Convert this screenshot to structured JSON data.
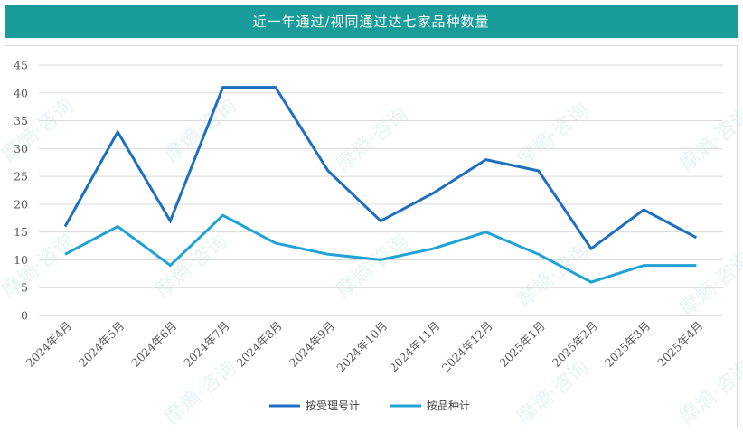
{
  "title": "近一年通过/视同通过达七家品种数量",
  "watermark": "摩熵·咨询",
  "colors": {
    "header_bg": "#1a9c9a",
    "series1": "#1f6fbf",
    "series2": "#1fa3d6",
    "grid": "#d9d9d9"
  },
  "chart_data": {
    "type": "line",
    "categories": [
      "2024年4月",
      "2024年5月",
      "2024年6月",
      "2024年7月",
      "2024年8月",
      "2024年9月",
      "2024年10月",
      "2024年11月",
      "2024年12月",
      "2025年1月",
      "2025年2月",
      "2025年3月",
      "2025年4月"
    ],
    "series": [
      {
        "name": "按受理号计",
        "values": [
          16,
          33,
          17,
          41,
          41,
          26,
          17,
          22,
          28,
          26,
          12,
          19,
          14
        ]
      },
      {
        "name": "按品种计",
        "values": [
          11,
          16,
          9,
          18,
          13,
          11,
          10,
          12,
          15,
          11,
          6,
          9,
          9
        ]
      }
    ],
    "ylim": [
      0,
      45
    ],
    "yticks": [
      0,
      5,
      10,
      15,
      20,
      25,
      30,
      35,
      40,
      45
    ],
    "grid": true,
    "legend_position": "bottom"
  }
}
